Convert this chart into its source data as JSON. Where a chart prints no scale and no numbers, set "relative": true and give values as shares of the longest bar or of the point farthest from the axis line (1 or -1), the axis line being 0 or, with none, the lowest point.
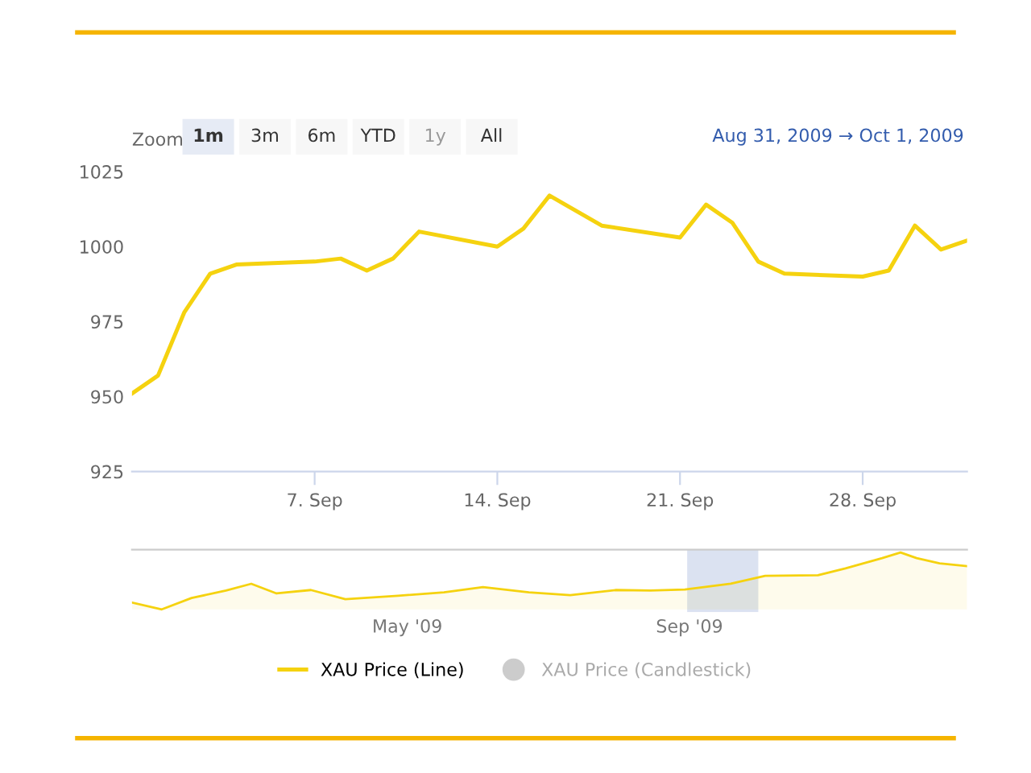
{
  "chart_data": [
    {
      "type": "line",
      "x": [
        "2009-08-31",
        "2009-09-01",
        "2009-09-02",
        "2009-09-03",
        "2009-09-04",
        "2009-09-07",
        "2009-09-08",
        "2009-09-09",
        "2009-09-10",
        "2009-09-11",
        "2009-09-14",
        "2009-09-15",
        "2009-09-16",
        "2009-09-18",
        "2009-09-21",
        "2009-09-22",
        "2009-09-23",
        "2009-09-24",
        "2009-09-25",
        "2009-09-28",
        "2009-09-29",
        "2009-09-30",
        "2009-10-01",
        "2009-10-02"
      ],
      "series": [
        {
          "name": "XAU Price (Line)",
          "color": "#f5d20f",
          "values": [
            951,
            957,
            978,
            991,
            994,
            995,
            996,
            992,
            996,
            1005,
            1000,
            1006,
            1017,
            1007,
            1003,
            1014,
            1008,
            995,
            991,
            990,
            992,
            1007,
            999,
            1002
          ]
        }
      ],
      "xlim": [
        "2009-08-31",
        "2009-10-02"
      ],
      "xticks": [
        {
          "value": "2009-09-07",
          "label": "7. Sep"
        },
        {
          "value": "2009-09-14",
          "label": "14. Sep"
        },
        {
          "value": "2009-09-21",
          "label": "21. Sep"
        },
        {
          "value": "2009-09-28",
          "label": "28. Sep"
        }
      ],
      "ylim": [
        925,
        1025
      ],
      "yticks": [
        925,
        950,
        975,
        1000,
        1025
      ],
      "grid": false,
      "legend": "bottom",
      "annotations": [
        "Zoom",
        "1m",
        "3m",
        "6m",
        "YTD",
        "1y",
        "All",
        "Aug 31, 2009",
        "→",
        "Oct 1, 2009",
        "XAU Price (Candlestick)"
      ]
    },
    {
      "type": "area",
      "relative": true,
      "color": "#f5d20f",
      "x": [
        "2009-01-01",
        "2009-01-14",
        "2009-01-27",
        "2009-02-11",
        "2009-02-22",
        "2009-03-05",
        "2009-03-20",
        "2009-04-04",
        "2009-04-27",
        "2009-05-17",
        "2009-06-03",
        "2009-06-23",
        "2009-07-11",
        "2009-07-31",
        "2009-08-15",
        "2009-08-30",
        "2009-09-19",
        "2009-10-04",
        "2009-10-27",
        "2009-11-08",
        "2009-11-24",
        "2009-12-02",
        "2009-12-09",
        "2009-12-19",
        "2009-12-31"
      ],
      "values": [
        0.12,
        0,
        0.2,
        0.33,
        0.45,
        0.28,
        0.34,
        0.18,
        0.24,
        0.3,
        0.39,
        0.3,
        0.25,
        0.34,
        0.33,
        0.35,
        0.45,
        0.59,
        0.6,
        0.72,
        0.9,
        1,
        0.9,
        0.81,
        0.76
      ],
      "xlim": [
        "2009-01-01",
        "2009-12-31"
      ],
      "xticks": [
        {
          "value": "2009-05-01",
          "label": "May '09"
        },
        {
          "value": "2009-09-01",
          "label": "Sep '09"
        }
      ],
      "bands": [
        {
          "axis": "x",
          "from": "2009-08-31",
          "to": "2009-10-01",
          "label": null,
          "color": "#ccd6eb"
        }
      ]
    }
  ]
}
